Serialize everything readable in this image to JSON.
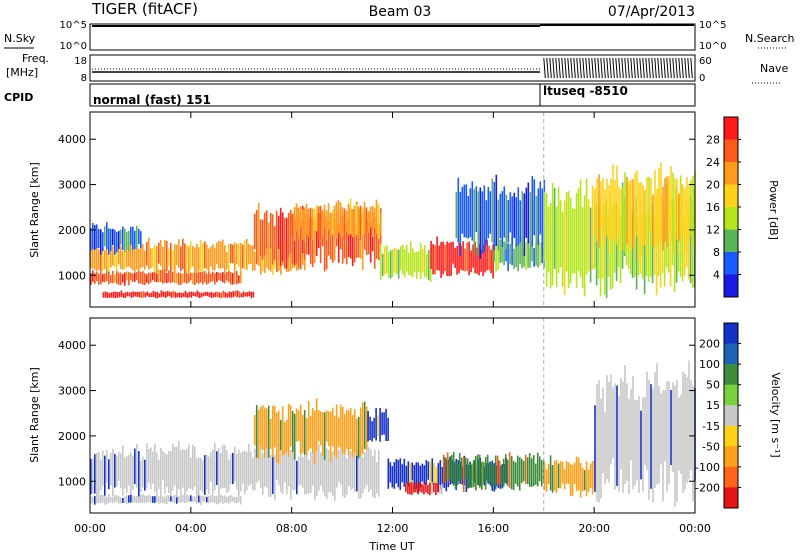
{
  "header": {
    "station": "TIGER (fitACF)",
    "beam": "Beam 03",
    "date": "07/Apr/2013"
  },
  "param_panels": {
    "nsky_label": "N.Sky",
    "nsearch_label": "N.Search",
    "noise_ticks_left": [
      "10^5",
      "10^0"
    ],
    "noise_ticks_right": [
      "10^5",
      "10^0"
    ],
    "freq_label_1": "Freq.",
    "freq_label_2": "[MHz]",
    "freq_ticks": [
      "18",
      "8"
    ],
    "nave_label": "Nave",
    "nave_ticks": [
      "60",
      "0"
    ],
    "cpid_label": "CPID",
    "cpid_segments": [
      {
        "label": "normal (fast) 151",
        "start_hour": 0
      },
      {
        "label": "ltuseq -8510",
        "start_hour": 18
      }
    ]
  },
  "colorbars": {
    "power": {
      "title": "Power [dB]",
      "ticks": [
        "28",
        "24",
        "20",
        "16",
        "12",
        "8",
        "4"
      ],
      "colors": [
        "#ff1a1a",
        "#ff5a1a",
        "#ff9a1a",
        "#ffd21a",
        "#b4e61a",
        "#5ab45a",
        "#1a5aff",
        "#1a1ae6"
      ]
    },
    "velocity": {
      "title": "Velocity [m s⁻¹]",
      "ticks": [
        "200",
        "100",
        "50",
        "15",
        "-15",
        "-50",
        "-100",
        "-200"
      ],
      "colors": [
        "#1432c8",
        "#1e64b4",
        "#3c8c3c",
        "#78d23c",
        "#c8c8c8",
        "#ffd21a",
        "#ffa01a",
        "#ff6419",
        "#e61414"
      ]
    }
  },
  "axes": {
    "ylabel": "Slant Range [km]",
    "xlabel": "Time UT",
    "y_ticks": [
      "4000",
      "3000",
      "2000",
      "1000"
    ],
    "x_ticks": [
      "00:00",
      "04:00",
      "08:00",
      "12:00",
      "16:00",
      "20:00",
      "00:00"
    ]
  },
  "chart_data": [
    {
      "type": "heatmap",
      "name": "Power",
      "x_unit": "hour UT",
      "xlim": [
        0,
        24
      ],
      "ylim": [
        300,
        4600
      ],
      "y_unit": "km",
      "regions": [
        {
          "t0": 0.0,
          "t1": 8.5,
          "r0": 1050,
          "r1": 1750,
          "level": 20
        },
        {
          "t0": 0.0,
          "t1": 6.0,
          "r0": 800,
          "r1": 1100,
          "level": 24
        },
        {
          "t0": 0.5,
          "t1": 6.5,
          "r0": 500,
          "r1": 650,
          "level": 28
        },
        {
          "t0": 6.5,
          "t1": 11.5,
          "r0": 1200,
          "r1": 2500,
          "level": 24
        },
        {
          "t0": 8.0,
          "t1": 11.5,
          "r0": 1800,
          "r1": 2600,
          "level": 20
        },
        {
          "t0": 11.5,
          "t1": 13.5,
          "r0": 900,
          "r1": 1700,
          "level": 12
        },
        {
          "t0": 13.5,
          "t1": 16.0,
          "r0": 1000,
          "r1": 1800,
          "level": 28
        },
        {
          "t0": 16.0,
          "t1": 18.0,
          "r0": 1100,
          "r1": 1800,
          "level": 8
        },
        {
          "t0": 0.0,
          "t1": 2.0,
          "r0": 1500,
          "r1": 2100,
          "level": 4
        },
        {
          "t0": 14.5,
          "t1": 18.0,
          "r0": 1500,
          "r1": 3100,
          "level": 4
        },
        {
          "t0": 18.0,
          "t1": 24.0,
          "r0": 700,
          "r1": 3000,
          "level": 12
        },
        {
          "t0": 20.0,
          "t1": 24.0,
          "r0": 1500,
          "r1": 3300,
          "level": 16
        }
      ]
    },
    {
      "type": "heatmap",
      "name": "Velocity",
      "x_unit": "hour UT",
      "xlim": [
        0,
        24
      ],
      "ylim": [
        300,
        4600
      ],
      "y_unit": "km",
      "regions": [
        {
          "t0": 0.0,
          "t1": 11.5,
          "r0": 650,
          "r1": 1800,
          "level": 0
        },
        {
          "t0": 0.0,
          "t1": 6.0,
          "r0": 500,
          "r1": 700,
          "level": 0
        },
        {
          "t0": 6.5,
          "t1": 11.0,
          "r0": 1500,
          "r1": 2700,
          "level": -50
        },
        {
          "t0": 11.0,
          "t1": 11.8,
          "r0": 1800,
          "r1": 2600,
          "level": 200
        },
        {
          "t0": 11.8,
          "t1": 16.5,
          "r0": 800,
          "r1": 1500,
          "level": 200
        },
        {
          "t0": 12.5,
          "t1": 14.0,
          "r0": 700,
          "r1": 1000,
          "level": -200
        },
        {
          "t0": 14.0,
          "t1": 18.0,
          "r0": 800,
          "r1": 1600,
          "level": 50
        },
        {
          "t0": 18.0,
          "t1": 20.0,
          "r0": 700,
          "r1": 1500,
          "level": -50
        },
        {
          "t0": 20.0,
          "t1": 24.0,
          "r0": 700,
          "r1": 3400,
          "level": 0
        }
      ]
    }
  ]
}
